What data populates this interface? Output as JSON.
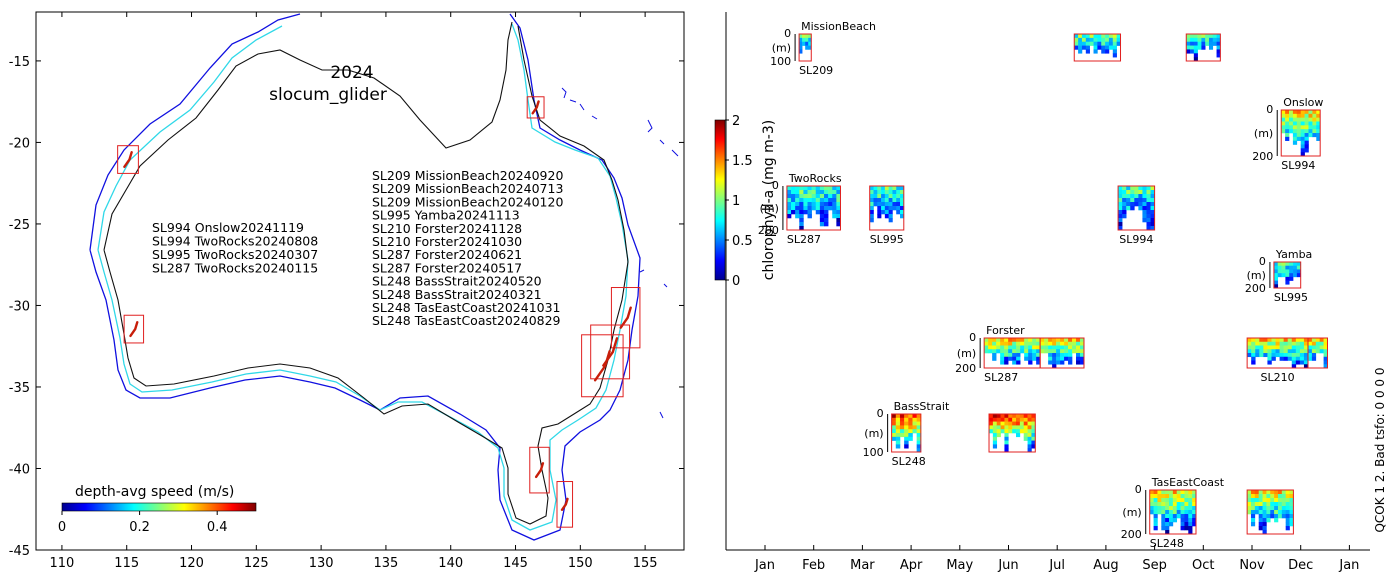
{
  "chart_data": [
    {
      "type": "map",
      "title_year": "2024",
      "title_platform": "slocum_glider",
      "xlim": [
        108,
        158
      ],
      "ylim": [
        -45,
        -12
      ],
      "xticks": [
        110,
        115,
        120,
        125,
        130,
        135,
        140,
        145,
        150,
        155
      ],
      "yticks": [
        -15,
        -20,
        -25,
        -30,
        -35,
        -40,
        -45
      ],
      "deployments_west": [
        "SL994 Onslow20241119",
        "SL994 TwoRocks20240808",
        "SL995 TwoRocks20240307",
        "SL287 TwoRocks20240115"
      ],
      "deployments_east": [
        "SL209 MissionBeach20240920",
        "SL209 MissionBeach20240713",
        "SL209 MissionBeach20240120",
        "SL995 Yamba20241113",
        "SL210 Forster20241128",
        "SL210 Forster20241030",
        "SL287 Forster20240621",
        "SL287 Forster20240517",
        "SL248 BassStrait20240520",
        "SL248 BassStrait20240321",
        "SL248 TasEastCoast20241031",
        "SL248 TasEastCoast20240829"
      ],
      "region_boxes": [
        {
          "name": "Onslow",
          "lon": [
            114.3,
            115.9
          ],
          "lat": [
            -21.9,
            -20.2
          ]
        },
        {
          "name": "TwoRocks",
          "lon": [
            114.8,
            116.3
          ],
          "lat": [
            -32.3,
            -30.6
          ]
        },
        {
          "name": "MissionBeach",
          "lon": [
            145.9,
            147.2
          ],
          "lat": [
            -18.5,
            -17.2
          ]
        },
        {
          "name": "Yamba",
          "lon": [
            152.4,
            154.6
          ],
          "lat": [
            -32.6,
            -28.9
          ]
        },
        {
          "name": "Forster",
          "lon": [
            150.8,
            153.8
          ],
          "lat": [
            -34.5,
            -31.2
          ]
        },
        {
          "name": "Forster",
          "lon": [
            150.1,
            153.3
          ],
          "lat": [
            -35.6,
            -31.8
          ]
        },
        {
          "name": "BassStrait",
          "lon": [
            146.1,
            147.6
          ],
          "lat": [
            -41.5,
            -38.7
          ]
        },
        {
          "name": "TasEastCoast",
          "lon": [
            148.2,
            149.4
          ],
          "lat": [
            -43.6,
            -40.8
          ]
        }
      ],
      "colorbar": {
        "label": "depth-avg speed (m/s)",
        "range": [
          0,
          0.5
        ],
        "ticks": [
          0,
          0.2,
          0.4
        ]
      }
    },
    {
      "type": "heatmap",
      "xlabel": "",
      "months": [
        "Jan",
        "Feb",
        "Mar",
        "Apr",
        "May",
        "Jun",
        "Jul",
        "Aug",
        "Sep",
        "Oct",
        "Nov",
        "Dec",
        "Jan"
      ],
      "colorbar": {
        "label": "chlorophyll-a (mg m-3)",
        "range": [
          0,
          2
        ],
        "ticks": [
          0,
          0.5,
          1,
          1.5,
          2
        ]
      },
      "side_text": "QCOK 1  2. Bad tsfo: 0  0  0  0",
      "deployments": [
        {
          "site": "MissionBeach",
          "glider": "SL209",
          "start": 0.7,
          "end": 0.95,
          "row": 0,
          "depth_max": "100",
          "labeled": true
        },
        {
          "site": "MissionBeach",
          "glider": "SL209",
          "start": 6.35,
          "end": 7.3,
          "row": 0,
          "labeled": false
        },
        {
          "site": "MissionBeach",
          "glider": "SL209",
          "start": 8.65,
          "end": 9.35,
          "row": 0,
          "labeled": false
        },
        {
          "site": "Onslow",
          "glider": "SL994",
          "start": 10.6,
          "end": 11.4,
          "row": 1,
          "depth_max": "200",
          "labeled": true
        },
        {
          "site": "TwoRocks",
          "glider": "SL287",
          "start": 0.45,
          "end": 1.55,
          "row": 2,
          "depth_max": "200",
          "labeled": true
        },
        {
          "site": "TwoRocks",
          "glider": "SL995",
          "start": 2.15,
          "end": 2.85,
          "row": 2,
          "labeled": false,
          "bottom_label": "SL995"
        },
        {
          "site": "TwoRocks",
          "glider": "SL994",
          "start": 7.25,
          "end": 8.0,
          "row": 2,
          "labeled": false,
          "bottom_label": "SL994"
        },
        {
          "site": "Yamba",
          "glider": "SL995",
          "start": 10.45,
          "end": 11.0,
          "row": 3,
          "depth_max": "200",
          "labeled": true
        },
        {
          "site": "Forster",
          "glider": "SL287",
          "start": 4.5,
          "end": 5.65,
          "row": 4,
          "depth_max": "200",
          "labeled": true
        },
        {
          "site": "Forster",
          "glider": "SL287",
          "start": 5.65,
          "end": 6.55,
          "row": 4,
          "labeled": false
        },
        {
          "site": "Forster",
          "glider": "SL210",
          "start": 9.9,
          "end": 11.15,
          "row": 4,
          "labeled": false,
          "bottom_label": "SL210"
        },
        {
          "site": "Forster",
          "glider": "SL210",
          "start": 11.15,
          "end": 11.55,
          "row": 4,
          "labeled": false
        },
        {
          "site": "BassStrait",
          "glider": "SL248",
          "start": 2.6,
          "end": 3.2,
          "row": 5,
          "depth_max": "100",
          "labeled": true
        },
        {
          "site": "BassStrait",
          "glider": "SL248",
          "start": 4.6,
          "end": 5.55,
          "row": 5,
          "labeled": false
        },
        {
          "site": "TasEastCoast",
          "glider": "SL248",
          "start": 7.9,
          "end": 8.85,
          "row": 6,
          "depth_max": "200",
          "labeled": true
        },
        {
          "site": "TasEastCoast",
          "glider": "SL248",
          "start": 9.9,
          "end": 10.85,
          "row": 6,
          "labeled": false
        }
      ]
    }
  ]
}
